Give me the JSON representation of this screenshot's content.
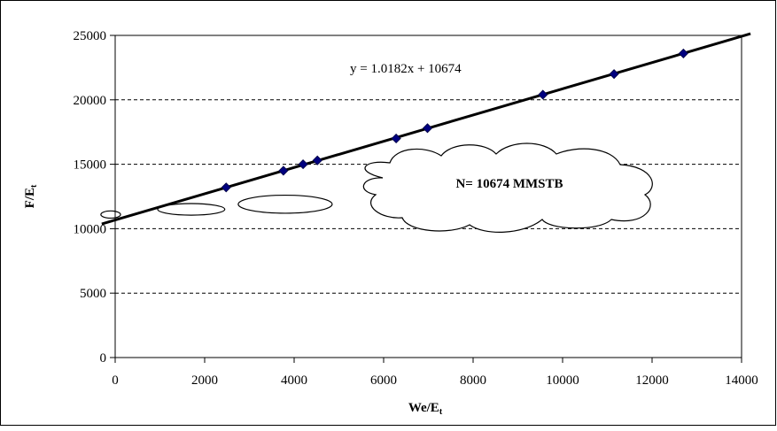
{
  "chart_data": {
    "type": "scatter",
    "xlabel": "We/E",
    "xlabel_sub": "t",
    "ylabel": "F/E",
    "ylabel_sub": "t",
    "xlim": [
      0,
      14000
    ],
    "ylim": [
      0,
      25000
    ],
    "xticks": [
      0,
      2000,
      4000,
      6000,
      8000,
      10000,
      12000,
      14000
    ],
    "yticks": [
      0,
      5000,
      10000,
      15000,
      20000,
      25000
    ],
    "grid": "horizontal-dashed",
    "series": [
      {
        "x": [
          2480,
          3760,
          4200,
          4520,
          6280,
          6980,
          9560,
          11150,
          12700
        ],
        "y": [
          13200,
          14500,
          15000,
          15300,
          17000,
          17800,
          20400,
          22000,
          23600
        ],
        "color": "#00007f",
        "marker": "diamond"
      }
    ],
    "trendline": {
      "slope": 1.0182,
      "intercept": 10674,
      "x_range": [
        -300,
        14200
      ],
      "color": "#000000",
      "equation_label": "y = 1.0182x + 10674"
    },
    "annotations": {
      "callout_text": "N= 10674 MMSTB",
      "ellipse_markers": [
        {
          "cx": -100,
          "cy": 11100,
          "rx": 220,
          "ry": 280
        },
        {
          "cx": 1700,
          "cy": 11500,
          "rx": 750,
          "ry": 450
        },
        {
          "cx": 3800,
          "cy": 11900,
          "rx": 1050,
          "ry": 700
        }
      ]
    }
  }
}
